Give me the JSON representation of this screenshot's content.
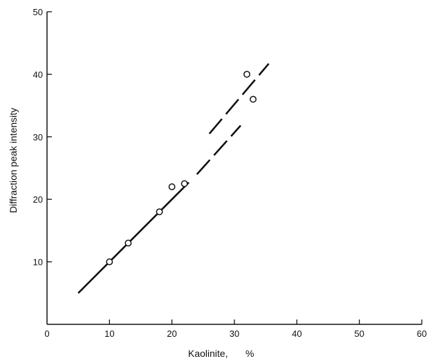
{
  "chart_data": {
    "type": "scatter",
    "xlabel": "Kaolinite,",
    "xlabel_unit": "%",
    "ylabel": "Diffraction peak intensity",
    "xlim": [
      0,
      60
    ],
    "ylim": [
      0,
      50
    ],
    "x_ticks": [
      "0",
      "10",
      "20",
      "30",
      "40",
      "50",
      "60"
    ],
    "y_ticks": [
      "10",
      "20",
      "30",
      "40",
      "50"
    ],
    "x_tick_values": [
      0,
      10,
      20,
      30,
      40,
      50,
      60
    ],
    "y_tick_values": [
      10,
      20,
      30,
      40,
      50
    ],
    "grid": false,
    "points": [
      {
        "x": 10,
        "y": 10
      },
      {
        "x": 13,
        "y": 13
      },
      {
        "x": 18,
        "y": 18
      },
      {
        "x": 20,
        "y": 22
      },
      {
        "x": 22,
        "y": 22.5
      },
      {
        "x": 32,
        "y": 40
      },
      {
        "x": 33,
        "y": 36
      }
    ],
    "lines": [
      {
        "style": "solid",
        "from": [
          5,
          5
        ],
        "to": [
          22.7,
          22.7
        ]
      },
      {
        "style": "dashed",
        "from": [
          24,
          24
        ],
        "to": [
          31,
          31.8
        ]
      },
      {
        "style": "dashed",
        "from": [
          26,
          30.5
        ],
        "to": [
          35.5,
          41.7
        ]
      }
    ]
  }
}
